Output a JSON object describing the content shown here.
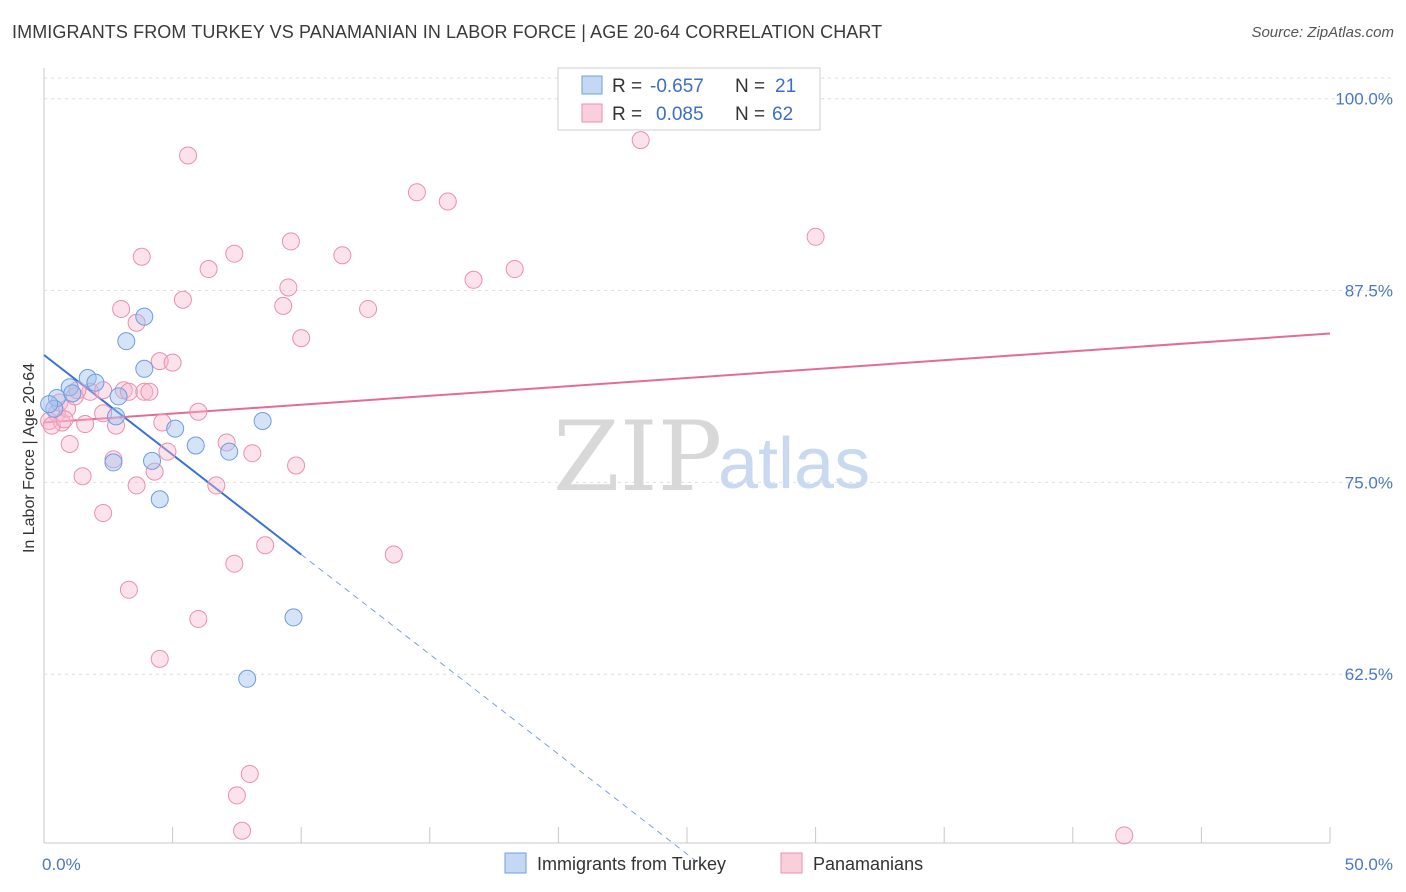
{
  "header": {
    "title": "IMMIGRANTS FROM TURKEY VS PANAMANIAN IN LABOR FORCE | AGE 20-64 CORRELATION CHART",
    "source": "Source: ZipAtlas.com"
  },
  "watermark": {
    "zip": "ZIP",
    "atlas": "atlas"
  },
  "legend": {
    "rows": [
      {
        "r_label": "R =",
        "r_value": "-0.657",
        "n_label": "N =",
        "n_value": "21",
        "color": "#6e9de0"
      },
      {
        "r_label": "R =",
        "r_value": "0.085",
        "n_label": "N =",
        "n_value": "62",
        "color": "#eb8fae"
      }
    ]
  },
  "chart_data": {
    "type": "scatter",
    "title": "IMMIGRANTS FROM TURKEY VS PANAMANIAN IN LABOR FORCE | AGE 20-64 CORRELATION CHART",
    "xlabel": "",
    "ylabel": "In Labor Force | Age 20-64",
    "xlim": [
      0,
      50
    ],
    "ylim": [
      51.5,
      102
    ],
    "x_tick_labels": [
      {
        "value": 0,
        "label": "0.0%"
      },
      {
        "value": 50,
        "label": "50.0%"
      }
    ],
    "y_tick_labels": [
      {
        "value": 100,
        "label": "100.0%"
      },
      {
        "value": 87.5,
        "label": "87.5%"
      },
      {
        "value": 75,
        "label": "75.0%"
      },
      {
        "value": 62.5,
        "label": "62.5%"
      }
    ],
    "grid": true,
    "legend_placement": "top-center",
    "series": [
      {
        "name": "Immigrants from Turkey",
        "color": "#6e9de0",
        "points": [
          [
            0.5,
            80.5
          ],
          [
            0.4,
            79.8
          ],
          [
            1.0,
            81.2
          ],
          [
            1.7,
            81.8
          ],
          [
            2.0,
            81.5
          ],
          [
            1.1,
            80.8
          ],
          [
            2.9,
            80.6
          ],
          [
            3.9,
            82.4
          ],
          [
            3.2,
            84.2
          ],
          [
            3.9,
            85.8
          ],
          [
            2.8,
            79.3
          ],
          [
            5.1,
            78.5
          ],
          [
            5.9,
            77.4
          ],
          [
            7.2,
            77.0
          ],
          [
            8.5,
            79.0
          ],
          [
            2.7,
            76.3
          ],
          [
            4.2,
            76.4
          ],
          [
            4.5,
            73.9
          ],
          [
            9.7,
            66.2
          ],
          [
            7.9,
            62.2
          ],
          [
            0.2,
            80.1
          ]
        ],
        "trend": {
          "x": [
            0,
            10.0
          ],
          "y": [
            83.3,
            70.3
          ]
        },
        "trend_extension": {
          "x": [
            10.0,
            25.6
          ],
          "y": [
            70.3,
            50.0
          ]
        }
      },
      {
        "name": "Panamanians",
        "color": "#eb8fae",
        "points": [
          [
            0.2,
            79.0
          ],
          [
            0.5,
            79.5
          ],
          [
            0.6,
            80.2
          ],
          [
            0.7,
            78.9
          ],
          [
            0.9,
            79.8
          ],
          [
            1.0,
            77.5
          ],
          [
            1.2,
            80.6
          ],
          [
            1.5,
            75.4
          ],
          [
            1.6,
            78.8
          ],
          [
            1.8,
            80.9
          ],
          [
            2.3,
            79.5
          ],
          [
            2.3,
            81.0
          ],
          [
            2.3,
            73.0
          ],
          [
            2.7,
            76.5
          ],
          [
            2.8,
            78.7
          ],
          [
            3.1,
            81.0
          ],
          [
            3.0,
            86.3
          ],
          [
            3.3,
            80.9
          ],
          [
            3.3,
            68.0
          ],
          [
            3.6,
            85.4
          ],
          [
            3.6,
            74.8
          ],
          [
            3.8,
            89.7
          ],
          [
            3.9,
            80.9
          ],
          [
            4.3,
            75.7
          ],
          [
            4.5,
            63.5
          ],
          [
            4.5,
            82.9
          ],
          [
            4.6,
            78.9
          ],
          [
            4.8,
            77.0
          ],
          [
            5.4,
            86.9
          ],
          [
            5.6,
            96.3
          ],
          [
            6.0,
            79.6
          ],
          [
            6.0,
            66.1
          ],
          [
            6.4,
            88.9
          ],
          [
            6.7,
            74.8
          ],
          [
            7.1,
            77.6
          ],
          [
            7.4,
            89.9
          ],
          [
            7.4,
            69.7
          ],
          [
            7.7,
            52.3
          ],
          [
            7.5,
            54.6
          ],
          [
            8.0,
            56.0
          ],
          [
            8.1,
            76.9
          ],
          [
            8.6,
            70.9
          ],
          [
            9.3,
            86.5
          ],
          [
            9.5,
            87.7
          ],
          [
            9.6,
            90.7
          ],
          [
            9.8,
            76.1
          ],
          [
            10.0,
            84.4
          ],
          [
            11.6,
            89.8
          ],
          [
            12.6,
            86.3
          ],
          [
            13.6,
            70.3
          ],
          [
            14.5,
            93.9
          ],
          [
            15.7,
            93.3
          ],
          [
            16.7,
            88.2
          ],
          [
            18.3,
            88.9
          ],
          [
            23.2,
            97.3
          ],
          [
            30.0,
            91.0
          ],
          [
            42.0,
            52.0
          ],
          [
            0.3,
            78.7
          ],
          [
            1.3,
            81.0
          ],
          [
            0.8,
            79.1
          ],
          [
            4.1,
            80.9
          ],
          [
            5.0,
            82.8
          ]
        ],
        "trend": {
          "x": [
            0,
            50
          ],
          "y": [
            78.9,
            84.7
          ]
        }
      }
    ]
  }
}
